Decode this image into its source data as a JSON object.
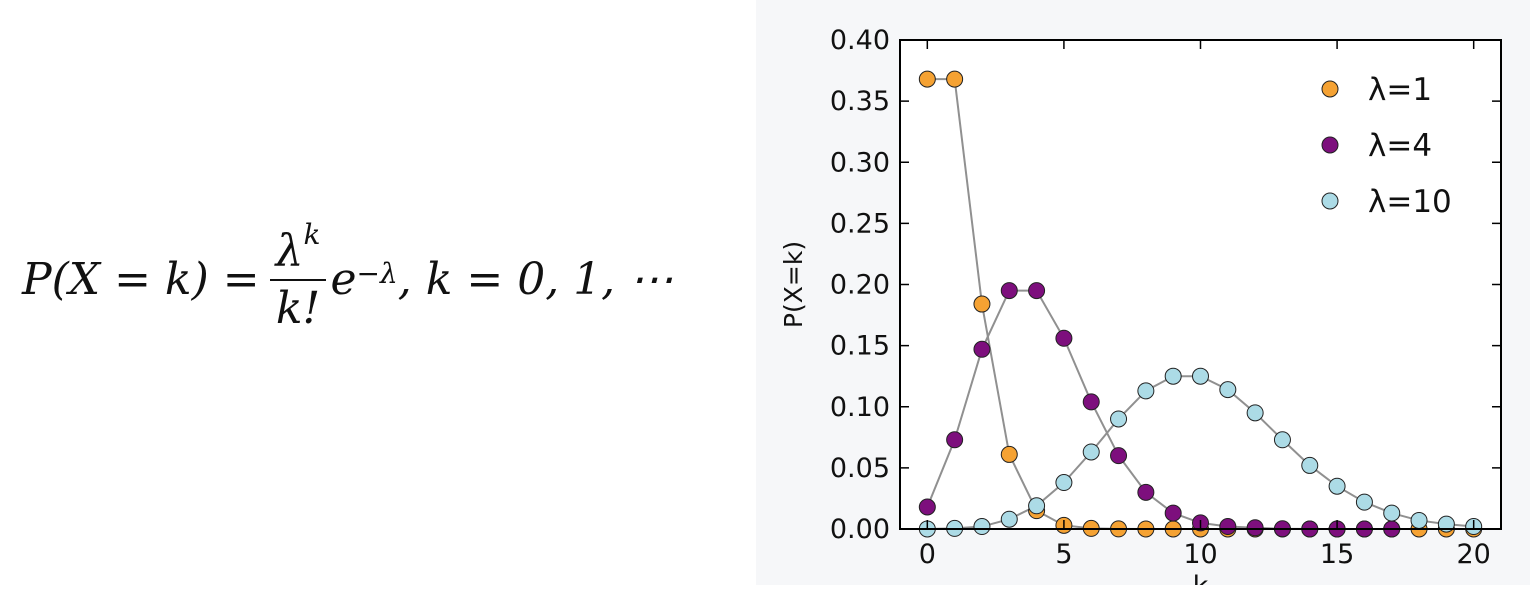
{
  "formula": {
    "lhs": "P(X = k) = ",
    "numerator_base": "λ",
    "numerator_exp": "k",
    "denominator": "k!",
    "e_base": "e",
    "e_exp": "−λ",
    "tail": ", k = 0, 1, ⋯"
  },
  "chart_data": {
    "type": "line",
    "title": "",
    "xlabel": "k",
    "ylabel": "P(X=k)",
    "xlim": [
      -1,
      21
    ],
    "ylim": [
      0,
      0.4
    ],
    "xticks": [
      0,
      5,
      10,
      15,
      20
    ],
    "yticks": [
      0.0,
      0.05,
      0.1,
      0.15,
      0.2,
      0.25,
      0.3,
      0.35,
      0.4
    ],
    "grid": false,
    "legend_position": "top-right",
    "line_color": "#909090",
    "x": [
      0,
      1,
      2,
      3,
      4,
      5,
      6,
      7,
      8,
      9,
      10,
      11,
      12,
      13,
      14,
      15,
      16,
      17,
      18,
      19,
      20
    ],
    "series": [
      {
        "name": "λ=1",
        "color": "#f5a233",
        "x": [
          0,
          1,
          2,
          3,
          4,
          5,
          6,
          7,
          8,
          9,
          10,
          11,
          12,
          13,
          14,
          15,
          16,
          17,
          18,
          19,
          20
        ],
        "values": [
          0.368,
          0.368,
          0.184,
          0.061,
          0.015,
          0.003,
          0.0005,
          7e-05,
          1e-05,
          0,
          0,
          0,
          0,
          0,
          0,
          0,
          0,
          0,
          0,
          0,
          0
        ]
      },
      {
        "name": "λ=4",
        "color": "#7d0f7d",
        "x": [
          0,
          1,
          2,
          3,
          4,
          5,
          6,
          7,
          8,
          9,
          10,
          11,
          12,
          13,
          14,
          15,
          16,
          17
        ],
        "values": [
          0.018,
          0.073,
          0.147,
          0.195,
          0.195,
          0.156,
          0.104,
          0.06,
          0.03,
          0.013,
          0.005,
          0.002,
          0.001,
          0.0002,
          5e-05,
          1e-05,
          0,
          0
        ]
      },
      {
        "name": "λ=10",
        "color": "#acdbe6",
        "x": [
          0,
          1,
          2,
          3,
          4,
          5,
          6,
          7,
          8,
          9,
          10,
          11,
          12,
          13,
          14,
          15,
          16,
          17,
          18,
          19,
          20
        ],
        "values": [
          5e-05,
          0.0005,
          0.002,
          0.008,
          0.019,
          0.038,
          0.063,
          0.09,
          0.113,
          0.125,
          0.125,
          0.114,
          0.095,
          0.073,
          0.052,
          0.035,
          0.022,
          0.013,
          0.007,
          0.004,
          0.002
        ]
      }
    ]
  }
}
